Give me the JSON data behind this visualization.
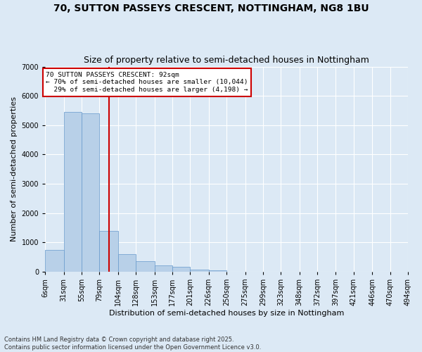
{
  "title": "70, SUTTON PASSEYS CRESCENT, NOTTINGHAM, NG8 1BU",
  "subtitle": "Size of property relative to semi-detached houses in Nottingham",
  "xlabel": "Distribution of semi-detached houses by size in Nottingham",
  "ylabel": "Number of semi-detached properties",
  "footnote": "Contains HM Land Registry data © Crown copyright and database right 2025.\nContains public sector information licensed under the Open Government Licence v3.0.",
  "property_label": "70 SUTTON PASSEYS CRESCENT: 92sqm",
  "pct_smaller": 70,
  "count_smaller": 10044,
  "pct_larger": 29,
  "count_larger": 4198,
  "bin_labels": [
    "6sqm",
    "31sqm",
    "55sqm",
    "79sqm",
    "104sqm",
    "128sqm",
    "153sqm",
    "177sqm",
    "201sqm",
    "226sqm",
    "250sqm",
    "275sqm",
    "299sqm",
    "323sqm",
    "348sqm",
    "372sqm",
    "397sqm",
    "421sqm",
    "446sqm",
    "470sqm",
    "494sqm"
  ],
  "bin_edges": [
    6,
    31,
    55,
    79,
    104,
    128,
    153,
    177,
    201,
    226,
    250,
    275,
    299,
    323,
    348,
    372,
    397,
    421,
    446,
    470,
    494
  ],
  "bar_values": [
    750,
    5450,
    5400,
    1400,
    600,
    370,
    210,
    155,
    80,
    45,
    10,
    0,
    0,
    0,
    0,
    0,
    0,
    0,
    0,
    0
  ],
  "bar_color": "#b8d0e8",
  "bar_edge_color": "#6699cc",
  "vline_color": "#cc0000",
  "vline_x": 92,
  "background_color": "#dce9f5",
  "ylim": [
    0,
    7000
  ],
  "yticks": [
    0,
    1000,
    2000,
    3000,
    4000,
    5000,
    6000,
    7000
  ],
  "title_fontsize": 10,
  "subtitle_fontsize": 9,
  "axis_label_fontsize": 8,
  "tick_fontsize": 7
}
